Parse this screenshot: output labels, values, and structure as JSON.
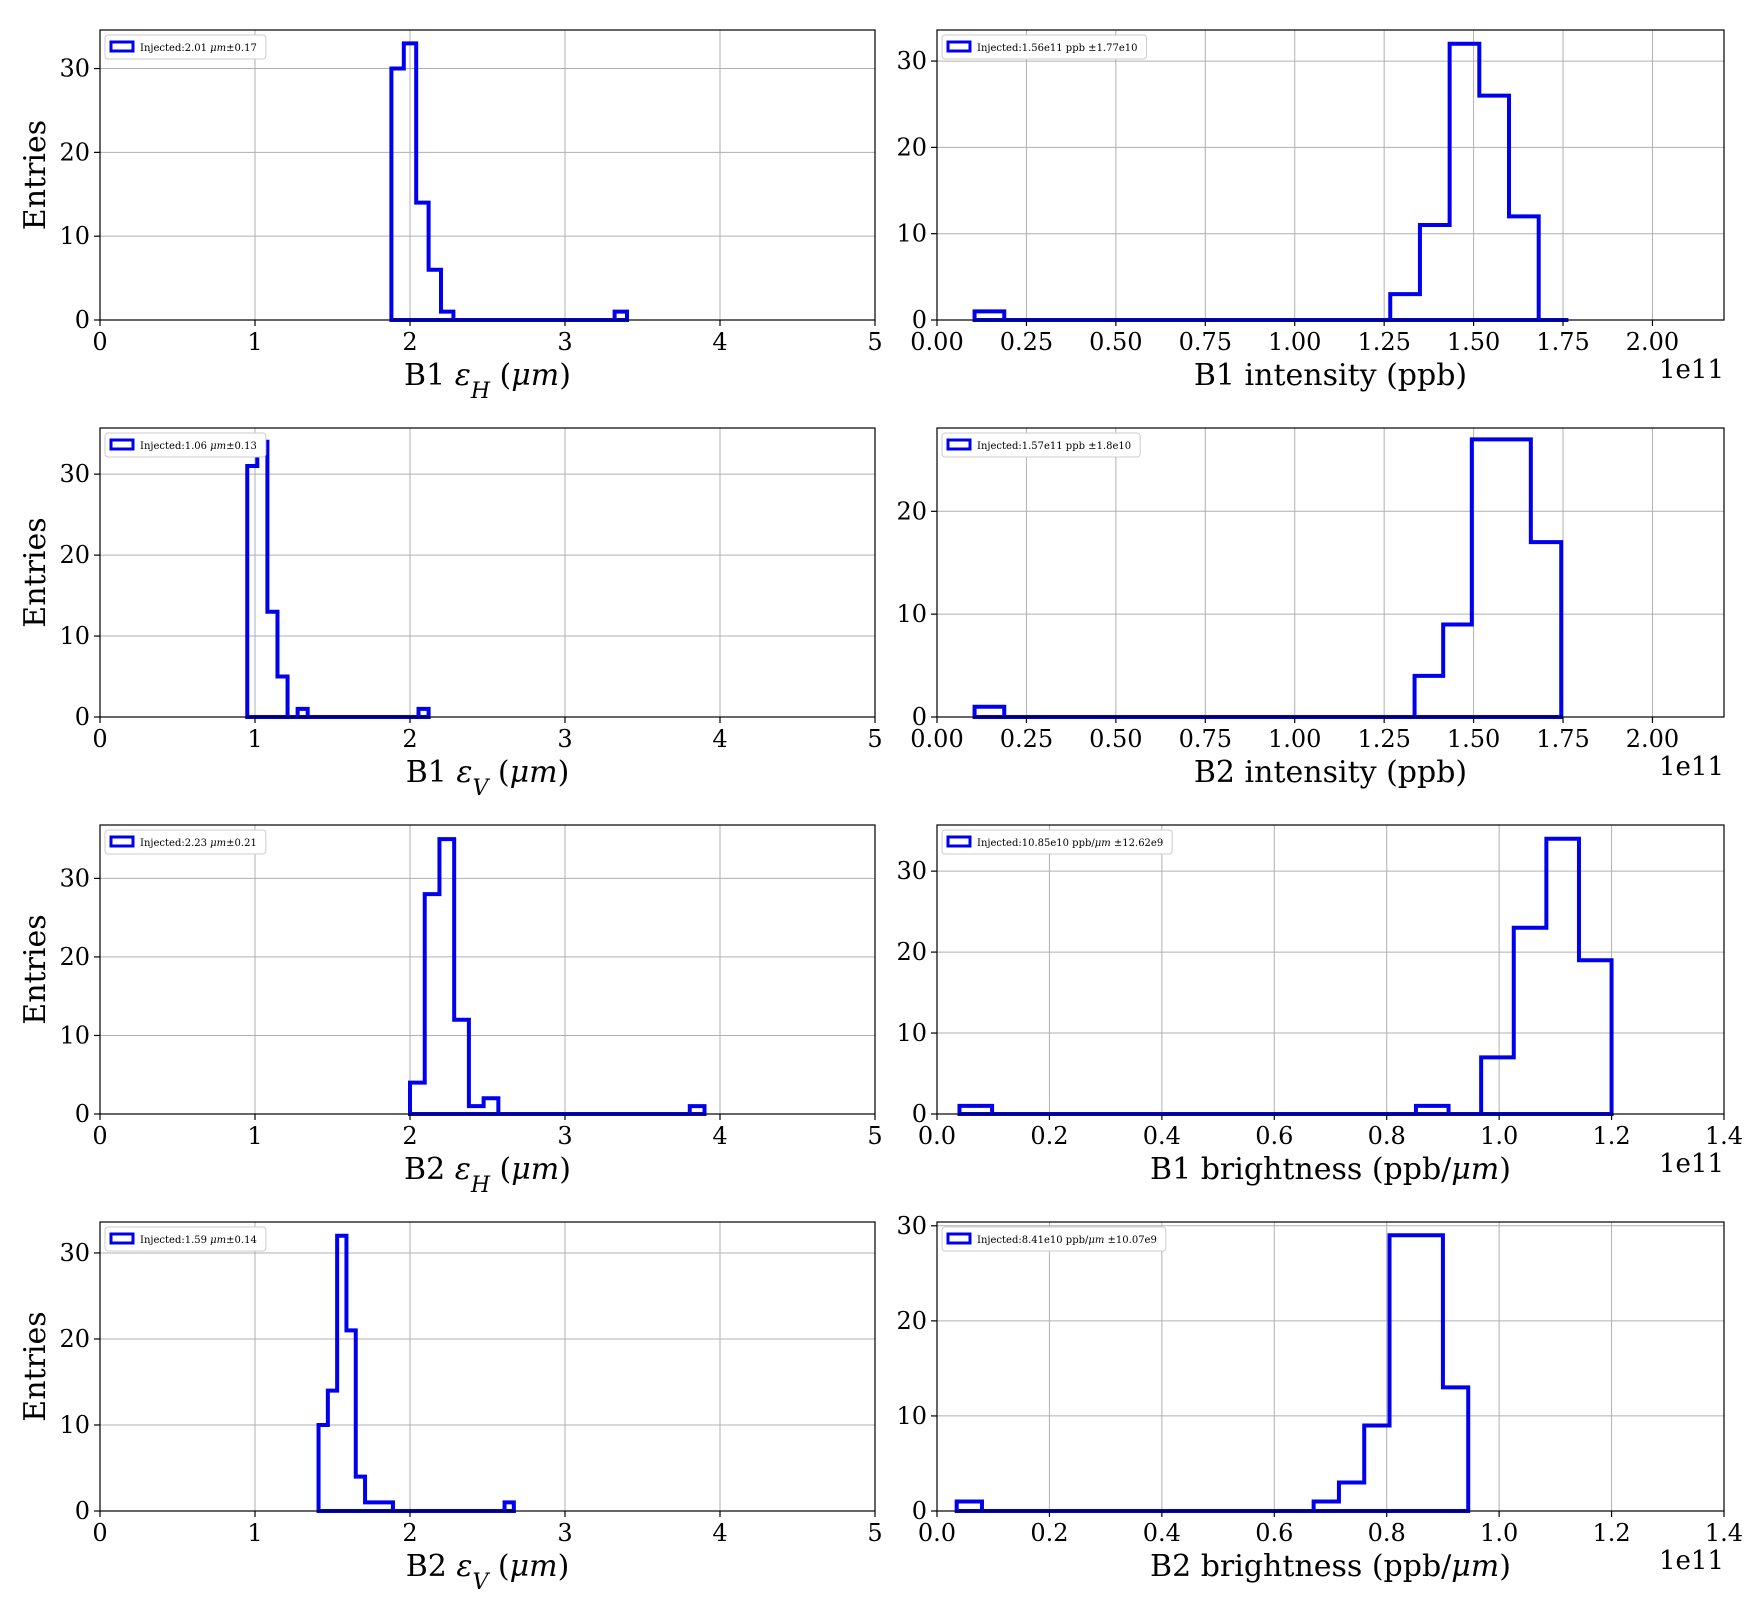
{
  "figure": {
    "ylabel_text": "Entries",
    "line_color": "#0000ee"
  },
  "chart_data": [
    {
      "type": "histogram",
      "xlabel": "B1 εH (μm)",
      "xlabel_parts": [
        {
          "t": "B1 "
        },
        {
          "t": "ε",
          "i": true
        },
        {
          "t": "H",
          "i": true,
          "sub": true
        },
        {
          "t": " ("
        },
        {
          "t": "μm",
          "i": true
        },
        {
          "t": ")"
        }
      ],
      "ylabel": "Entries",
      "legend": "Injected:2.01 μm±0.17",
      "legend_parts": [
        {
          "t": "Injected:2.01 "
        },
        {
          "t": "μm",
          "i": true
        },
        {
          "t": "±0.17"
        }
      ],
      "xlim": [
        0,
        5
      ],
      "ylim": [
        0,
        34.6
      ],
      "xticks": [
        0,
        1,
        2,
        3,
        4,
        5
      ],
      "xtick_labels": [
        "0",
        "1",
        "2",
        "3",
        "4",
        "5"
      ],
      "yticks": [
        0,
        10,
        20,
        30
      ],
      "ytick_labels": [
        "0",
        "10",
        "20",
        "30"
      ],
      "offset": "",
      "edges": [
        1.88,
        1.96,
        2.04,
        2.12,
        2.2,
        2.28,
        2.36,
        2.44,
        2.52,
        2.6,
        2.68,
        2.76,
        2.84,
        2.92,
        3.0,
        3.08,
        3.16,
        3.24,
        3.32,
        3.4
      ],
      "counts": [
        30,
        33,
        14,
        6,
        1,
        0,
        0,
        0,
        0,
        0,
        0,
        0,
        0,
        0,
        0,
        0,
        0,
        0,
        1
      ]
    },
    {
      "type": "histogram",
      "xlabel": "B1 intensity (ppb)",
      "xlabel_parts": [
        {
          "t": "B1 intensity (ppb)"
        }
      ],
      "ylabel": "",
      "legend": "Injected:1.56e11 ppb ±1.77e10",
      "legend_parts": [
        {
          "t": "Injected:1.56e11 ppb ±1.77e10"
        }
      ],
      "xlim": [
        0,
        2.2
      ],
      "ylim": [
        0,
        33.6
      ],
      "xticks": [
        0,
        0.25,
        0.5,
        0.75,
        1.0,
        1.25,
        1.5,
        1.75,
        2.0
      ],
      "xtick_labels": [
        "0.00",
        "0.25",
        "0.50",
        "0.75",
        "1.00",
        "1.25",
        "1.50",
        "1.75",
        "2.00"
      ],
      "yticks": [
        0,
        10,
        20,
        30
      ],
      "ytick_labels": [
        "0",
        "10",
        "20",
        "30"
      ],
      "offset": "1e11",
      "edges": [
        0.105,
        0.188,
        0.271,
        0.354,
        0.437,
        0.52,
        0.603,
        0.686,
        0.769,
        0.852,
        0.935,
        1.018,
        1.101,
        1.184,
        1.267,
        1.35,
        1.433,
        1.516,
        1.599,
        1.682,
        1.765
      ],
      "counts": [
        1,
        0,
        0,
        0,
        0,
        0,
        0,
        0,
        0,
        0,
        0,
        0,
        0,
        0,
        3,
        11,
        32,
        26,
        12,
        0
      ]
    },
    {
      "type": "histogram",
      "xlabel": "B1 εV (μm)",
      "xlabel_parts": [
        {
          "t": "B1 "
        },
        {
          "t": "ε",
          "i": true
        },
        {
          "t": "V",
          "i": true,
          "sub": true
        },
        {
          "t": " ("
        },
        {
          "t": "μm",
          "i": true
        },
        {
          "t": ")"
        }
      ],
      "ylabel": "Entries",
      "legend": "Injected:1.06 μm±0.13",
      "legend_parts": [
        {
          "t": "Injected:1.06 "
        },
        {
          "t": "μm",
          "i": true
        },
        {
          "t": "±0.13"
        }
      ],
      "xlim": [
        0,
        5
      ],
      "ylim": [
        0,
        35.7
      ],
      "xticks": [
        0,
        1,
        2,
        3,
        4,
        5
      ],
      "xtick_labels": [
        "0",
        "1",
        "2",
        "3",
        "4",
        "5"
      ],
      "yticks": [
        0,
        10,
        20,
        30
      ],
      "ytick_labels": [
        "0",
        "10",
        "20",
        "30"
      ],
      "offset": "",
      "edges": [
        0.95,
        1.015,
        1.08,
        1.145,
        1.21,
        1.275,
        1.34,
        1.405,
        1.47,
        1.535,
        1.6,
        1.665,
        1.73,
        1.795,
        1.86,
        1.925,
        1.99,
        2.055,
        2.12
      ],
      "counts": [
        31,
        34,
        13,
        5,
        0,
        1,
        0,
        0,
        0,
        0,
        0,
        0,
        0,
        0,
        0,
        0,
        0,
        1
      ]
    },
    {
      "type": "histogram",
      "xlabel": "B2 intensity (ppb)",
      "xlabel_parts": [
        {
          "t": "B2 intensity (ppb)"
        }
      ],
      "ylabel": "",
      "legend": "Injected:1.57e11 ppb ±1.8e10",
      "legend_parts": [
        {
          "t": "Injected:1.57e11 ppb ±1.8e10"
        }
      ],
      "xlim": [
        0,
        2.2
      ],
      "ylim": [
        0,
        28.1
      ],
      "xticks": [
        0,
        0.25,
        0.5,
        0.75,
        1.0,
        1.25,
        1.5,
        1.75,
        2.0
      ],
      "xtick_labels": [
        "0.00",
        "0.25",
        "0.50",
        "0.75",
        "1.00",
        "1.25",
        "1.50",
        "1.75",
        "2.00"
      ],
      "yticks": [
        0,
        10,
        20
      ],
      "ytick_labels": [
        "0",
        "10",
        "20"
      ],
      "offset": "1e11",
      "edges": [
        0.105,
        0.188,
        0.271,
        0.354,
        0.437,
        0.52,
        0.603,
        0.686,
        0.769,
        0.852,
        0.935,
        1.018,
        1.101,
        1.184,
        1.267,
        1.335,
        1.415,
        1.495,
        1.575,
        1.66,
        1.745
      ],
      "counts": [
        1,
        0,
        0,
        0,
        0,
        0,
        0,
        0,
        0,
        0,
        0,
        0,
        0,
        0,
        0,
        4,
        9,
        27,
        27,
        17
      ]
    },
    {
      "type": "histogram",
      "xlabel": "B2 εH (μm)",
      "xlabel_parts": [
        {
          "t": "B2 "
        },
        {
          "t": "ε",
          "i": true
        },
        {
          "t": "H",
          "i": true,
          "sub": true
        },
        {
          "t": " ("
        },
        {
          "t": "μm",
          "i": true
        },
        {
          "t": ")"
        }
      ],
      "ylabel": "Entries",
      "legend": "Injected:2.23 μm±0.21",
      "legend_parts": [
        {
          "t": "Injected:2.23 "
        },
        {
          "t": "μm",
          "i": true
        },
        {
          "t": "±0.21"
        }
      ],
      "xlim": [
        0,
        5
      ],
      "ylim": [
        0,
        36.8
      ],
      "xticks": [
        0,
        1,
        2,
        3,
        4,
        5
      ],
      "xtick_labels": [
        "0",
        "1",
        "2",
        "3",
        "4",
        "5"
      ],
      "yticks": [
        0,
        10,
        20,
        30
      ],
      "ytick_labels": [
        "0",
        "10",
        "20",
        "30"
      ],
      "offset": "",
      "edges": [
        2.0,
        2.095,
        2.19,
        2.285,
        2.38,
        2.475,
        2.57,
        2.665,
        2.76,
        2.855,
        2.95,
        3.045,
        3.14,
        3.235,
        3.33,
        3.425,
        3.52,
        3.615,
        3.71,
        3.805,
        3.9
      ],
      "counts": [
        4,
        28,
        35,
        12,
        1,
        2,
        0,
        0,
        0,
        0,
        0,
        0,
        0,
        0,
        0,
        0,
        0,
        0,
        0,
        1
      ]
    },
    {
      "type": "histogram",
      "xlabel": "B1 brightness (ppb/μm)",
      "xlabel_parts": [
        {
          "t": "B1 brightness (ppb/"
        },
        {
          "t": "μm",
          "i": true
        },
        {
          "t": ")"
        }
      ],
      "ylabel": "",
      "legend": "Injected:10.85e10 ppb/μm ±12.62e9",
      "legend_parts": [
        {
          "t": "Injected:10.85e10 ppb/"
        },
        {
          "t": "μm",
          "i": true
        },
        {
          "t": " ±12.62e9"
        }
      ],
      "xlim": [
        0,
        1.4
      ],
      "ylim": [
        0,
        35.7
      ],
      "xticks": [
        0,
        0.2,
        0.4,
        0.6,
        0.8,
        1.0,
        1.2,
        1.4
      ],
      "xtick_labels": [
        "0.0",
        "0.2",
        "0.4",
        "0.6",
        "0.8",
        "1.0",
        "1.2",
        "1.4"
      ],
      "yticks": [
        0,
        10,
        20,
        30
      ],
      "ytick_labels": [
        "0",
        "10",
        "20",
        "30"
      ],
      "offset": "1e11",
      "edges": [
        0.04,
        0.098,
        0.156,
        0.214,
        0.272,
        0.33,
        0.388,
        0.446,
        0.504,
        0.562,
        0.62,
        0.678,
        0.736,
        0.794,
        0.852,
        0.91,
        0.968,
        1.026,
        1.084,
        1.142,
        1.2
      ],
      "counts": [
        1,
        0,
        0,
        0,
        0,
        0,
        0,
        0,
        0,
        0,
        0,
        0,
        0,
        0,
        1,
        0,
        7,
        23,
        34,
        19
      ]
    },
    {
      "type": "histogram",
      "xlabel": "B2 εV (μm)",
      "xlabel_parts": [
        {
          "t": "B2 "
        },
        {
          "t": "ε",
          "i": true
        },
        {
          "t": "V",
          "i": true,
          "sub": true
        },
        {
          "t": " ("
        },
        {
          "t": "μm",
          "i": true
        },
        {
          "t": ")"
        }
      ],
      "ylabel": "Entries",
      "legend": "Injected:1.59 μm±0.14",
      "legend_parts": [
        {
          "t": "Injected:1.59 "
        },
        {
          "t": "μm",
          "i": true
        },
        {
          "t": "±0.14"
        }
      ],
      "xlim": [
        0,
        5
      ],
      "ylim": [
        0,
        33.6
      ],
      "xticks": [
        0,
        1,
        2,
        3,
        4,
        5
      ],
      "xtick_labels": [
        "0",
        "1",
        "2",
        "3",
        "4",
        "5"
      ],
      "yticks": [
        0,
        10,
        20,
        30
      ],
      "ytick_labels": [
        "0",
        "10",
        "20",
        "30"
      ],
      "offset": "",
      "edges": [
        1.41,
        1.47,
        1.53,
        1.59,
        1.65,
        1.71,
        1.77,
        1.83,
        1.89,
        1.95,
        2.01,
        2.07,
        2.13,
        2.19,
        2.25,
        2.31,
        2.37,
        2.43,
        2.49,
        2.55,
        2.61,
        2.67
      ],
      "counts": [
        10,
        14,
        32,
        21,
        4,
        1,
        1,
        1,
        0,
        0,
        0,
        0,
        0,
        0,
        0,
        0,
        0,
        0,
        0,
        0,
        1
      ]
    },
    {
      "type": "histogram",
      "xlabel": "B2 brightness (ppb/μm)",
      "xlabel_parts": [
        {
          "t": "B2 brightness (ppb/"
        },
        {
          "t": "μm",
          "i": true
        },
        {
          "t": ")"
        }
      ],
      "ylabel": "",
      "legend": "Injected:8.41e10 ppb/μm ±10.07e9",
      "legend_parts": [
        {
          "t": "Injected:8.41e10 ppb/"
        },
        {
          "t": "μm",
          "i": true
        },
        {
          "t": " ±10.07e9"
        }
      ],
      "xlim": [
        0,
        1.4
      ],
      "ylim": [
        0,
        30.4
      ],
      "xticks": [
        0,
        0.2,
        0.4,
        0.6,
        0.8,
        1.0,
        1.2,
        1.4
      ],
      "xtick_labels": [
        "0.0",
        "0.2",
        "0.4",
        "0.6",
        "0.8",
        "1.0",
        "1.2",
        "1.4"
      ],
      "yticks": [
        0,
        10,
        20,
        30
      ],
      "ytick_labels": [
        "0",
        "10",
        "20",
        "30"
      ],
      "offset": "1e11",
      "edges": [
        0.035,
        0.08,
        0.125,
        0.17,
        0.215,
        0.26,
        0.305,
        0.35,
        0.395,
        0.44,
        0.485,
        0.53,
        0.575,
        0.62,
        0.67,
        0.715,
        0.76,
        0.805,
        0.85,
        0.9,
        0.945
      ],
      "counts": [
        1,
        0,
        0,
        0,
        0,
        0,
        0,
        0,
        0,
        0,
        0,
        0,
        0,
        0,
        1,
        3,
        9,
        29,
        29,
        13
      ]
    }
  ]
}
